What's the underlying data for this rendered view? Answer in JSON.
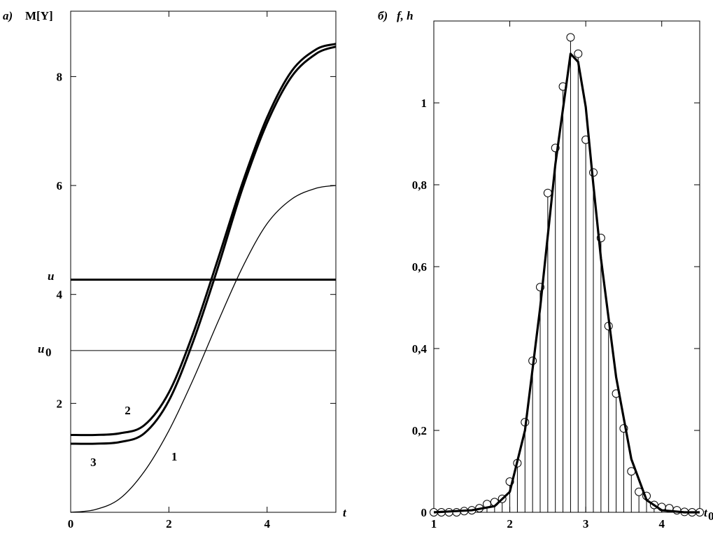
{
  "chart_data": [
    {
      "panel_label": "а)",
      "type": "line",
      "ylabel": "M[Y]",
      "xlabel": "t",
      "xlim": [
        0,
        5.4
      ],
      "ylim": [
        0,
        9.2
      ],
      "xticks": [
        0,
        2,
        4
      ],
      "xtick_labels": [
        "0",
        "2",
        "4"
      ],
      "yticks": [
        2,
        4,
        6,
        8
      ],
      "ytick_labels": [
        "2",
        "4",
        "6",
        "8"
      ],
      "hlines": [
        {
          "label": "u",
          "y": 4.27,
          "weight": "thick"
        },
        {
          "label": "u0",
          "y": 2.97,
          "weight": "thin"
        }
      ],
      "series": [
        {
          "name": "1",
          "weight": "thin",
          "x": [
            0,
            0.5,
            1.0,
            1.5,
            2.0,
            2.5,
            3.0,
            3.5,
            4.0,
            4.5,
            5.0,
            5.4
          ],
          "y": [
            0,
            0.05,
            0.25,
            0.75,
            1.5,
            2.45,
            3.5,
            4.5,
            5.3,
            5.75,
            5.95,
            6.0
          ]
        },
        {
          "name": "2",
          "weight": "thick",
          "x": [
            0,
            0.5,
            1.0,
            1.5,
            2.0,
            2.5,
            3.0,
            3.5,
            4.0,
            4.5,
            5.0,
            5.4
          ],
          "y": [
            1.42,
            1.42,
            1.45,
            1.6,
            2.2,
            3.3,
            4.65,
            6.05,
            7.25,
            8.1,
            8.5,
            8.6
          ]
        },
        {
          "name": "3",
          "weight": "thick",
          "x": [
            0,
            0.5,
            1.0,
            1.5,
            2.0,
            2.5,
            3.0,
            3.5,
            4.0,
            4.5,
            5.0,
            5.4
          ],
          "y": [
            1.26,
            1.26,
            1.29,
            1.45,
            2.05,
            3.15,
            4.5,
            5.95,
            7.15,
            8.0,
            8.42,
            8.55
          ]
        }
      ],
      "curve_labels": [
        {
          "text": "1",
          "x": 2.05,
          "y": 0.95
        },
        {
          "text": "2",
          "x": 1.1,
          "y": 1.8
        },
        {
          "text": "3",
          "x": 0.4,
          "y": 0.85
        }
      ]
    },
    {
      "panel_label": "б)",
      "type": "line",
      "ylabel": "f, h",
      "xlabel": "t0",
      "xlim": [
        1,
        4.5
      ],
      "ylim": [
        0,
        1.2
      ],
      "xticks": [
        1,
        2,
        3,
        4
      ],
      "xtick_labels": [
        "1",
        "2",
        "3",
        "4"
      ],
      "yticks": [
        0,
        0.2,
        0.4,
        0.6,
        0.8,
        1.0
      ],
      "ytick_labels": [
        "0",
        "0,2",
        "0,4",
        "0,6",
        "0,8",
        "1"
      ],
      "series": [
        {
          "name": "f",
          "weight": "thick",
          "x": [
            1.0,
            1.5,
            1.8,
            2.0,
            2.2,
            2.4,
            2.6,
            2.8,
            2.9,
            3.0,
            3.1,
            3.2,
            3.4,
            3.6,
            3.8,
            4.0,
            4.3,
            4.5
          ],
          "y": [
            0,
            0.005,
            0.015,
            0.05,
            0.2,
            0.5,
            0.85,
            1.12,
            1.1,
            0.99,
            0.8,
            0.62,
            0.33,
            0.13,
            0.03,
            0.005,
            0,
            0
          ]
        },
        {
          "name": "h",
          "type": "stem",
          "x": [
            1.0,
            1.1,
            1.2,
            1.3,
            1.4,
            1.5,
            1.6,
            1.7,
            1.8,
            1.9,
            2.0,
            2.1,
            2.2,
            2.3,
            2.4,
            2.5,
            2.6,
            2.7,
            2.8,
            2.9,
            3.0,
            3.1,
            3.2,
            3.3,
            3.4,
            3.5,
            3.6,
            3.7,
            3.8,
            3.9,
            4.0,
            4.1,
            4.2,
            4.3,
            4.4,
            4.5
          ],
          "y": [
            0,
            0,
            0,
            0,
            0.003,
            0.005,
            0.01,
            0.02,
            0.025,
            0.033,
            0.075,
            0.12,
            0.22,
            0.37,
            0.55,
            0.78,
            0.89,
            1.04,
            1.16,
            1.12,
            0.91,
            0.83,
            0.67,
            0.455,
            0.29,
            0.205,
            0.1,
            0.05,
            0.04,
            0.018,
            0.013,
            0.01,
            0.005,
            0.001,
            0,
            0
          ]
        }
      ]
    }
  ]
}
